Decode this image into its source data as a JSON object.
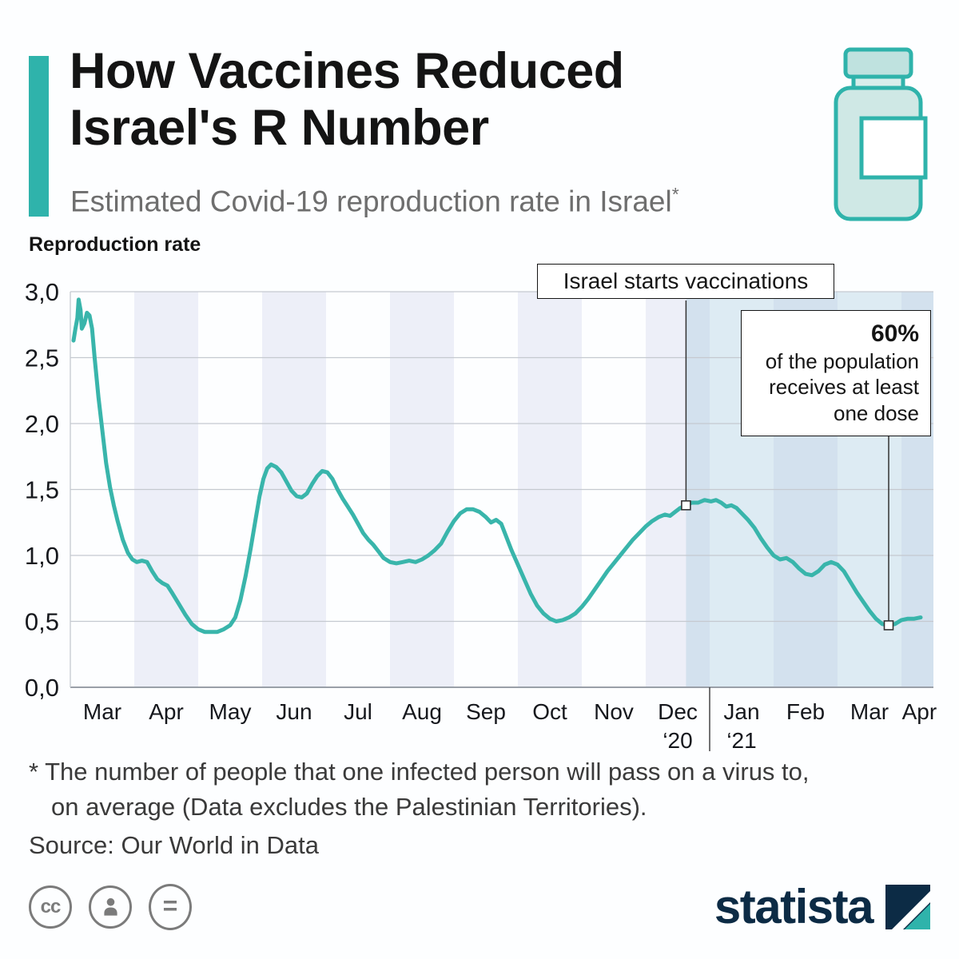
{
  "header": {
    "title_line1": "How Vaccines Reduced",
    "title_line2": "Israel's R Number",
    "subtitle": "Estimated Covid-19 reproduction rate in Israel",
    "subtitle_note": "*"
  },
  "chart": {
    "axis_title": "Reproduction rate"
  },
  "chart_data": {
    "type": "line",
    "title": "How Vaccines Reduced Israel's R Number",
    "subtitle": "Estimated Covid-19 reproduction rate in Israel",
    "xlabel": "",
    "ylabel": "Reproduction rate",
    "x_unit": "months since March 2020",
    "xlim": [
      0,
      13.5
    ],
    "ylim": [
      0,
      3
    ],
    "grid": true,
    "legend_position": "none",
    "yticks": [
      0,
      0.5,
      1,
      1.5,
      2,
      2.5,
      3
    ],
    "ytick_labels": [
      "0,0",
      "0,5",
      "1,0",
      "1,5",
      "2,0",
      "2,5",
      "3,0"
    ],
    "month_ticks": [
      {
        "x": 0.5,
        "label": "Mar"
      },
      {
        "x": 1.5,
        "label": "Apr"
      },
      {
        "x": 2.5,
        "label": "May"
      },
      {
        "x": 3.5,
        "label": "Jun"
      },
      {
        "x": 4.5,
        "label": "Jul"
      },
      {
        "x": 5.5,
        "label": "Aug"
      },
      {
        "x": 6.5,
        "label": "Sep"
      },
      {
        "x": 7.5,
        "label": "Oct"
      },
      {
        "x": 8.5,
        "label": "Nov"
      },
      {
        "x": 9.5,
        "label": "Dec",
        "sublabel": "‘20"
      },
      {
        "x": 10.5,
        "label": "Jan",
        "sublabel": "‘21"
      },
      {
        "x": 11.5,
        "label": "Feb"
      },
      {
        "x": 12.5,
        "label": "Mar"
      },
      {
        "x": 13.28,
        "label": "Apr"
      }
    ],
    "year_separator_x": 10,
    "shaded_bands": [
      [
        1,
        2
      ],
      [
        3,
        4
      ],
      [
        5,
        6
      ],
      [
        7,
        8
      ],
      [
        9,
        10
      ],
      [
        11,
        12
      ],
      [
        13,
        13.5
      ]
    ],
    "vaccination_shade_from": 9.63,
    "colors": {
      "line": "#39B5AB",
      "band": "#EDEFF8",
      "vaccination_band": "rgba(154,196,219,0.32)",
      "grid": "#C5C9D0",
      "axis": "#9AA0A8",
      "annotation": "#333333",
      "accent": "#2FB3AB"
    },
    "series": [
      {
        "name": "Estimated Covid-19 reproduction rate in Israel",
        "color": "#39B5AB",
        "points": [
          [
            0.05,
            2.63
          ],
          [
            0.08,
            2.72
          ],
          [
            0.11,
            2.8
          ],
          [
            0.13,
            2.94
          ],
          [
            0.16,
            2.86
          ],
          [
            0.18,
            2.72
          ],
          [
            0.22,
            2.76
          ],
          [
            0.26,
            2.84
          ],
          [
            0.3,
            2.82
          ],
          [
            0.34,
            2.72
          ],
          [
            0.38,
            2.5
          ],
          [
            0.44,
            2.2
          ],
          [
            0.5,
            1.95
          ],
          [
            0.56,
            1.7
          ],
          [
            0.62,
            1.52
          ],
          [
            0.68,
            1.38
          ],
          [
            0.74,
            1.26
          ],
          [
            0.82,
            1.12
          ],
          [
            0.9,
            1.02
          ],
          [
            0.97,
            0.97
          ],
          [
            1.04,
            0.95
          ],
          [
            1.12,
            0.96
          ],
          [
            1.2,
            0.95
          ],
          [
            1.28,
            0.88
          ],
          [
            1.36,
            0.82
          ],
          [
            1.44,
            0.79
          ],
          [
            1.52,
            0.77
          ],
          [
            1.6,
            0.71
          ],
          [
            1.7,
            0.63
          ],
          [
            1.8,
            0.55
          ],
          [
            1.9,
            0.48
          ],
          [
            2.0,
            0.44
          ],
          [
            2.1,
            0.42
          ],
          [
            2.2,
            0.42
          ],
          [
            2.3,
            0.42
          ],
          [
            2.4,
            0.44
          ],
          [
            2.5,
            0.47
          ],
          [
            2.58,
            0.53
          ],
          [
            2.66,
            0.66
          ],
          [
            2.74,
            0.84
          ],
          [
            2.82,
            1.05
          ],
          [
            2.9,
            1.28
          ],
          [
            2.96,
            1.45
          ],
          [
            3.02,
            1.58
          ],
          [
            3.08,
            1.66
          ],
          [
            3.14,
            1.69
          ],
          [
            3.22,
            1.67
          ],
          [
            3.3,
            1.63
          ],
          [
            3.38,
            1.56
          ],
          [
            3.46,
            1.49
          ],
          [
            3.54,
            1.45
          ],
          [
            3.62,
            1.44
          ],
          [
            3.7,
            1.47
          ],
          [
            3.78,
            1.54
          ],
          [
            3.86,
            1.6
          ],
          [
            3.94,
            1.64
          ],
          [
            4.02,
            1.63
          ],
          [
            4.1,
            1.58
          ],
          [
            4.18,
            1.5
          ],
          [
            4.26,
            1.43
          ],
          [
            4.34,
            1.37
          ],
          [
            4.42,
            1.31
          ],
          [
            4.5,
            1.24
          ],
          [
            4.58,
            1.17
          ],
          [
            4.66,
            1.12
          ],
          [
            4.74,
            1.08
          ],
          [
            4.82,
            1.03
          ],
          [
            4.9,
            0.98
          ],
          [
            5.0,
            0.95
          ],
          [
            5.1,
            0.94
          ],
          [
            5.2,
            0.95
          ],
          [
            5.3,
            0.96
          ],
          [
            5.4,
            0.95
          ],
          [
            5.5,
            0.97
          ],
          [
            5.6,
            1.0
          ],
          [
            5.7,
            1.04
          ],
          [
            5.8,
            1.09
          ],
          [
            5.9,
            1.18
          ],
          [
            6.0,
            1.26
          ],
          [
            6.1,
            1.32
          ],
          [
            6.2,
            1.35
          ],
          [
            6.3,
            1.35
          ],
          [
            6.4,
            1.33
          ],
          [
            6.5,
            1.29
          ],
          [
            6.58,
            1.25
          ],
          [
            6.66,
            1.27
          ],
          [
            6.74,
            1.24
          ],
          [
            6.82,
            1.14
          ],
          [
            6.9,
            1.04
          ],
          [
            7.0,
            0.93
          ],
          [
            7.1,
            0.82
          ],
          [
            7.2,
            0.71
          ],
          [
            7.3,
            0.62
          ],
          [
            7.4,
            0.56
          ],
          [
            7.5,
            0.52
          ],
          [
            7.6,
            0.5
          ],
          [
            7.7,
            0.51
          ],
          [
            7.8,
            0.53
          ],
          [
            7.9,
            0.56
          ],
          [
            8.0,
            0.61
          ],
          [
            8.1,
            0.67
          ],
          [
            8.2,
            0.74
          ],
          [
            8.3,
            0.81
          ],
          [
            8.4,
            0.88
          ],
          [
            8.5,
            0.94
          ],
          [
            8.6,
            1.0
          ],
          [
            8.7,
            1.06
          ],
          [
            8.8,
            1.12
          ],
          [
            8.9,
            1.17
          ],
          [
            9.0,
            1.22
          ],
          [
            9.1,
            1.26
          ],
          [
            9.2,
            1.29
          ],
          [
            9.3,
            1.31
          ],
          [
            9.38,
            1.3
          ],
          [
            9.46,
            1.33
          ],
          [
            9.54,
            1.36
          ],
          [
            9.63,
            1.38
          ],
          [
            9.72,
            1.4
          ],
          [
            9.82,
            1.4
          ],
          [
            9.92,
            1.42
          ],
          [
            10.02,
            1.41
          ],
          [
            10.1,
            1.42
          ],
          [
            10.18,
            1.4
          ],
          [
            10.26,
            1.37
          ],
          [
            10.34,
            1.38
          ],
          [
            10.42,
            1.36
          ],
          [
            10.5,
            1.32
          ],
          [
            10.6,
            1.27
          ],
          [
            10.7,
            1.21
          ],
          [
            10.8,
            1.13
          ],
          [
            10.9,
            1.06
          ],
          [
            11.0,
            1.0
          ],
          [
            11.1,
            0.97
          ],
          [
            11.2,
            0.98
          ],
          [
            11.3,
            0.95
          ],
          [
            11.4,
            0.9
          ],
          [
            11.5,
            0.86
          ],
          [
            11.6,
            0.85
          ],
          [
            11.7,
            0.88
          ],
          [
            11.8,
            0.93
          ],
          [
            11.9,
            0.95
          ],
          [
            12.0,
            0.93
          ],
          [
            12.1,
            0.88
          ],
          [
            12.2,
            0.8
          ],
          [
            12.3,
            0.72
          ],
          [
            12.4,
            0.65
          ],
          [
            12.5,
            0.58
          ],
          [
            12.6,
            0.52
          ],
          [
            12.7,
            0.48
          ],
          [
            12.8,
            0.47
          ],
          [
            12.9,
            0.48
          ],
          [
            13.0,
            0.51
          ],
          [
            13.1,
            0.52
          ],
          [
            13.2,
            0.52
          ],
          [
            13.3,
            0.53
          ]
        ]
      }
    ],
    "annotations": [
      {
        "id": "vaccination-start",
        "label": "Israel starts vaccinations",
        "x": 9.63,
        "y": 1.38
      },
      {
        "id": "dose-60",
        "headline": "60%",
        "lines": [
          "of the population",
          "receives at least",
          "one dose"
        ],
        "x": 12.8,
        "y": 0.47
      }
    ]
  },
  "footer": {
    "footnote_line1": "* The number of people that one infected person will pass on a virus to,",
    "footnote_line2": "on average (Data excludes the Palestinian Territories).",
    "source": "Source: Our World in Data"
  },
  "branding": {
    "logo_text": "statista",
    "license": {
      "cc_glyph": "cc",
      "nd_glyph": "="
    }
  }
}
